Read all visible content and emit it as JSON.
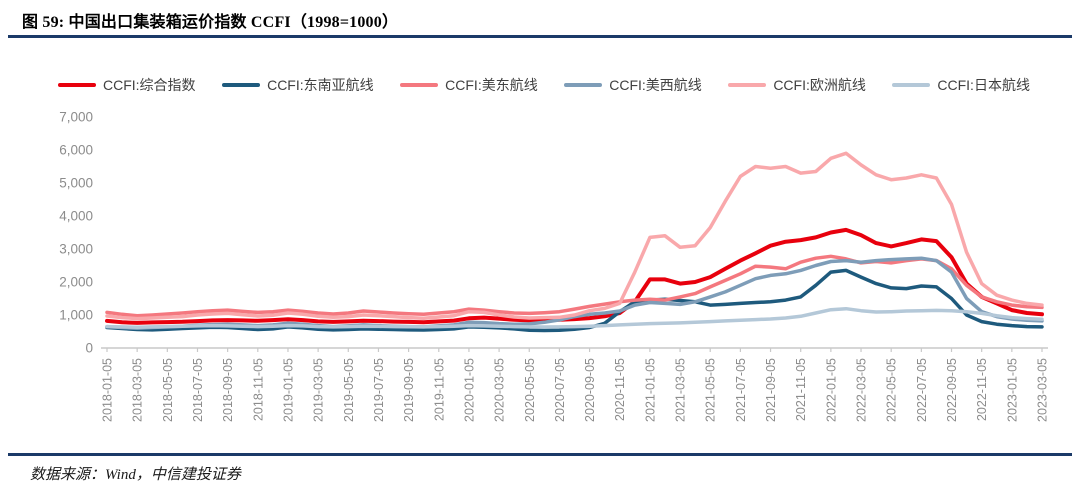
{
  "figure": {
    "title": "图 59: 中国出口集装箱运价指数 CCFI（1998=1000）",
    "source": "数据来源：Wind，中信建投证券"
  },
  "colors": {
    "rule_navy": "#1b3a68",
    "axis_text": "#8c8c8c",
    "axis_line": "#c9c9c9",
    "legend_text": "#404040"
  },
  "chart_data": {
    "type": "line",
    "title": "中国出口集装箱运价指数 CCFI（1998=1000）",
    "grid": false,
    "legend_position": "top",
    "ylim": [
      0,
      7000
    ],
    "y_ticks": [
      0,
      1000,
      2000,
      3000,
      4000,
      5000,
      6000,
      7000
    ],
    "y_tick_labels": [
      "0",
      "1,000",
      "2,000",
      "3,000",
      "4,000",
      "5,000",
      "6,000",
      "7,000"
    ],
    "x_tick_labels": [
      "2018-01-05",
      "2018-03-05",
      "2018-05-05",
      "2018-07-05",
      "2018-09-05",
      "2018-11-05",
      "2019-01-05",
      "2019-03-05",
      "2019-05-05",
      "2019-07-05",
      "2019-09-05",
      "2019-11-05",
      "2020-01-05",
      "2020-03-05",
      "2020-05-05",
      "2020-07-05",
      "2020-09-05",
      "2020-11-05",
      "2021-01-05",
      "2021-03-05",
      "2021-05-05",
      "2021-07-05",
      "2021-09-05",
      "2021-11-05",
      "2022-01-05",
      "2022-03-05",
      "2022-05-05",
      "2022-07-05",
      "2022-09-05",
      "2022-11-05",
      "2023-01-05",
      "2023-03-05"
    ],
    "x": [
      "2018-01",
      "2018-02",
      "2018-03",
      "2018-04",
      "2018-05",
      "2018-06",
      "2018-07",
      "2018-08",
      "2018-09",
      "2018-10",
      "2018-11",
      "2018-12",
      "2019-01",
      "2019-02",
      "2019-03",
      "2019-04",
      "2019-05",
      "2019-06",
      "2019-07",
      "2019-08",
      "2019-09",
      "2019-10",
      "2019-11",
      "2019-12",
      "2020-01",
      "2020-02",
      "2020-03",
      "2020-04",
      "2020-05",
      "2020-06",
      "2020-07",
      "2020-08",
      "2020-09",
      "2020-10",
      "2020-11",
      "2020-12",
      "2021-01",
      "2021-02",
      "2021-03",
      "2021-04",
      "2021-05",
      "2021-06",
      "2021-07",
      "2021-08",
      "2021-09",
      "2021-10",
      "2021-11",
      "2021-12",
      "2022-01",
      "2022-02",
      "2022-03",
      "2022-04",
      "2022-05",
      "2022-06",
      "2022-07",
      "2022-08",
      "2022-09",
      "2022-10",
      "2022-11",
      "2022-12",
      "2023-01",
      "2023-02",
      "2023-03"
    ],
    "series": [
      {
        "key": "composite",
        "name": "CCFI:综合指数",
        "color": "#e8000d",
        "width": 4,
        "values": [
          820,
          780,
          760,
          775,
          785,
          795,
          815,
          835,
          845,
          835,
          825,
          845,
          870,
          845,
          805,
          790,
          805,
          825,
          815,
          800,
          790,
          780,
          805,
          830,
          900,
          920,
          890,
          855,
          835,
          845,
          855,
          875,
          905,
          960,
          1060,
          1400,
          2080,
          2080,
          1950,
          2000,
          2150,
          2400,
          2650,
          2870,
          3100,
          3220,
          3270,
          3350,
          3500,
          3580,
          3420,
          3180,
          3080,
          3180,
          3290,
          3240,
          2750,
          1950,
          1550,
          1350,
          1150,
          1060,
          1020
        ]
      },
      {
        "key": "southeast-asia",
        "name": "CCFI:东南亚航线",
        "color": "#1e5a7d",
        "width": 3.5,
        "values": [
          620,
          590,
          560,
          550,
          570,
          590,
          610,
          630,
          620,
          590,
          560,
          580,
          640,
          610,
          570,
          550,
          560,
          580,
          570,
          560,
          550,
          545,
          560,
          580,
          640,
          630,
          610,
          580,
          540,
          530,
          540,
          570,
          620,
          750,
          1100,
          1400,
          1450,
          1480,
          1440,
          1400,
          1300,
          1320,
          1350,
          1380,
          1400,
          1450,
          1550,
          1900,
          2300,
          2350,
          2150,
          1950,
          1820,
          1800,
          1880,
          1850,
          1500,
          1000,
          800,
          720,
          680,
          650,
          640
        ]
      },
      {
        "key": "us-east",
        "name": "CCFI:美东航线",
        "color": "#f4787f",
        "width": 3.5,
        "values": [
          1080,
          1020,
          980,
          1000,
          1030,
          1060,
          1100,
          1130,
          1150,
          1110,
          1080,
          1100,
          1150,
          1110,
          1060,
          1030,
          1060,
          1120,
          1090,
          1060,
          1040,
          1020,
          1060,
          1100,
          1180,
          1150,
          1100,
          1060,
          1050,
          1070,
          1100,
          1180,
          1260,
          1330,
          1400,
          1450,
          1480,
          1450,
          1550,
          1650,
          1850,
          2050,
          2250,
          2480,
          2450,
          2400,
          2600,
          2720,
          2780,
          2700,
          2580,
          2620,
          2580,
          2650,
          2700,
          2650,
          2400,
          1900,
          1550,
          1400,
          1300,
          1250,
          1230
        ]
      },
      {
        "key": "us-west",
        "name": "CCFI:美西航线",
        "color": "#7e9db8",
        "width": 3.5,
        "values": [
          650,
          620,
          600,
          620,
          640,
          660,
          690,
          710,
          720,
          700,
          680,
          700,
          750,
          720,
          680,
          650,
          670,
          700,
          680,
          660,
          650,
          640,
          670,
          700,
          780,
          770,
          740,
          720,
          730,
          780,
          850,
          950,
          1020,
          1060,
          1120,
          1300,
          1380,
          1350,
          1320,
          1400,
          1550,
          1700,
          1900,
          2100,
          2200,
          2250,
          2350,
          2500,
          2620,
          2650,
          2600,
          2650,
          2680,
          2700,
          2720,
          2650,
          2300,
          1500,
          1100,
          950,
          880,
          840,
          820
        ]
      },
      {
        "key": "europe",
        "name": "CCFI:欧洲航线",
        "color": "#f9a8ab",
        "width": 3.5,
        "values": [
          970,
          920,
          890,
          910,
          930,
          950,
          1000,
          1030,
          1050,
          1010,
          970,
          990,
          1060,
          1020,
          960,
          930,
          950,
          1000,
          980,
          950,
          920,
          900,
          940,
          980,
          1100,
          1080,
          1000,
          940,
          910,
          920,
          930,
          1000,
          1130,
          1200,
          1350,
          2300,
          3350,
          3400,
          3050,
          3100,
          3650,
          4450,
          5200,
          5500,
          5450,
          5500,
          5300,
          5350,
          5750,
          5900,
          5550,
          5250,
          5100,
          5150,
          5250,
          5150,
          4350,
          2900,
          1950,
          1600,
          1450,
          1350,
          1300
        ]
      },
      {
        "key": "japan",
        "name": "CCFI:日本航线",
        "color": "#b4c8d8",
        "width": 3.5,
        "values": [
          650,
          640,
          630,
          640,
          650,
          660,
          670,
          680,
          670,
          660,
          650,
          660,
          680,
          670,
          650,
          640,
          650,
          660,
          655,
          650,
          645,
          640,
          650,
          660,
          680,
          670,
          660,
          650,
          640,
          635,
          640,
          650,
          660,
          680,
          700,
          720,
          740,
          750,
          760,
          780,
          800,
          820,
          840,
          860,
          880,
          910,
          960,
          1060,
          1160,
          1190,
          1130,
          1090,
          1100,
          1120,
          1130,
          1140,
          1130,
          1100,
          1050,
          980,
          920,
          890,
          870
        ]
      }
    ]
  }
}
